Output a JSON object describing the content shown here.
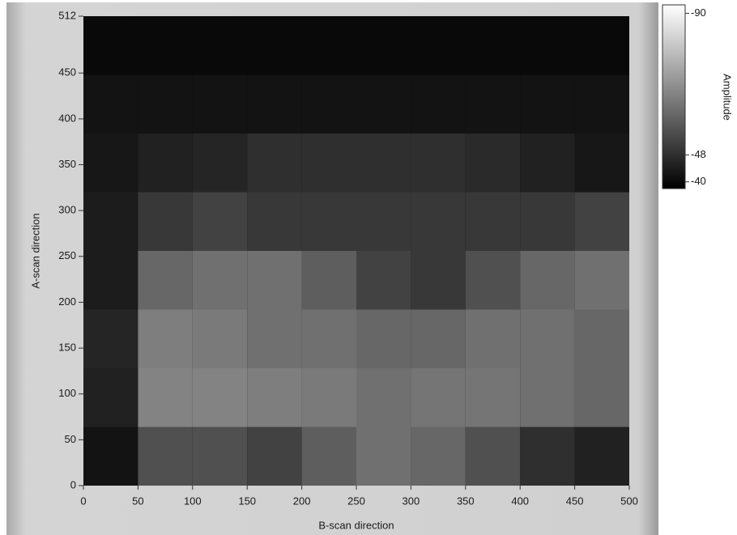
{
  "chart_data": {
    "type": "heatmap",
    "x_label": "B-scan direction",
    "y_label": "A-scan direction",
    "xlim": [
      0,
      500
    ],
    "ylim": [
      0,
      512
    ],
    "xticks": [
      0,
      50,
      100,
      150,
      200,
      250,
      300,
      350,
      400,
      450,
      500
    ],
    "yticks": [
      0,
      50,
      100,
      150,
      200,
      250,
      300,
      350,
      400,
      450,
      512
    ],
    "x_edges": [
      0,
      50,
      100,
      150,
      200,
      250,
      300,
      350,
      400,
      450,
      500
    ],
    "y_edges": [
      0,
      64,
      128,
      192,
      256,
      320,
      384,
      448,
      512
    ],
    "z": [
      [
        -42,
        -55,
        -55,
        -52,
        -58,
        -62,
        -60,
        -55,
        -48,
        -45
      ],
      [
        -45,
        -66,
        -66,
        -65,
        -64,
        -62,
        -63,
        -63,
        -62,
        -60
      ],
      [
        -46,
        -65,
        -64,
        -62,
        -62,
        -60,
        -60,
        -62,
        -62,
        -60
      ],
      [
        -44,
        -60,
        -62,
        -62,
        -58,
        -52,
        -50,
        -55,
        -60,
        -62
      ],
      [
        -44,
        -50,
        -52,
        -50,
        -50,
        -50,
        -50,
        -50,
        -50,
        -52
      ],
      [
        -43,
        -45,
        -46,
        -48,
        -48,
        -48,
        -48,
        -47,
        -45,
        -43
      ],
      [
        -42,
        -42,
        -42,
        -42,
        -42,
        -42,
        -42,
        -42,
        -42,
        -42
      ],
      [
        -40,
        -40,
        -40,
        -40,
        -40,
        -40,
        -40,
        -40,
        -40,
        -40
      ]
    ],
    "colorbar": {
      "label": "Amplitude",
      "lim": [
        -38,
        -92.5
      ],
      "ticks": [
        -90,
        -48,
        -40
      ]
    }
  }
}
